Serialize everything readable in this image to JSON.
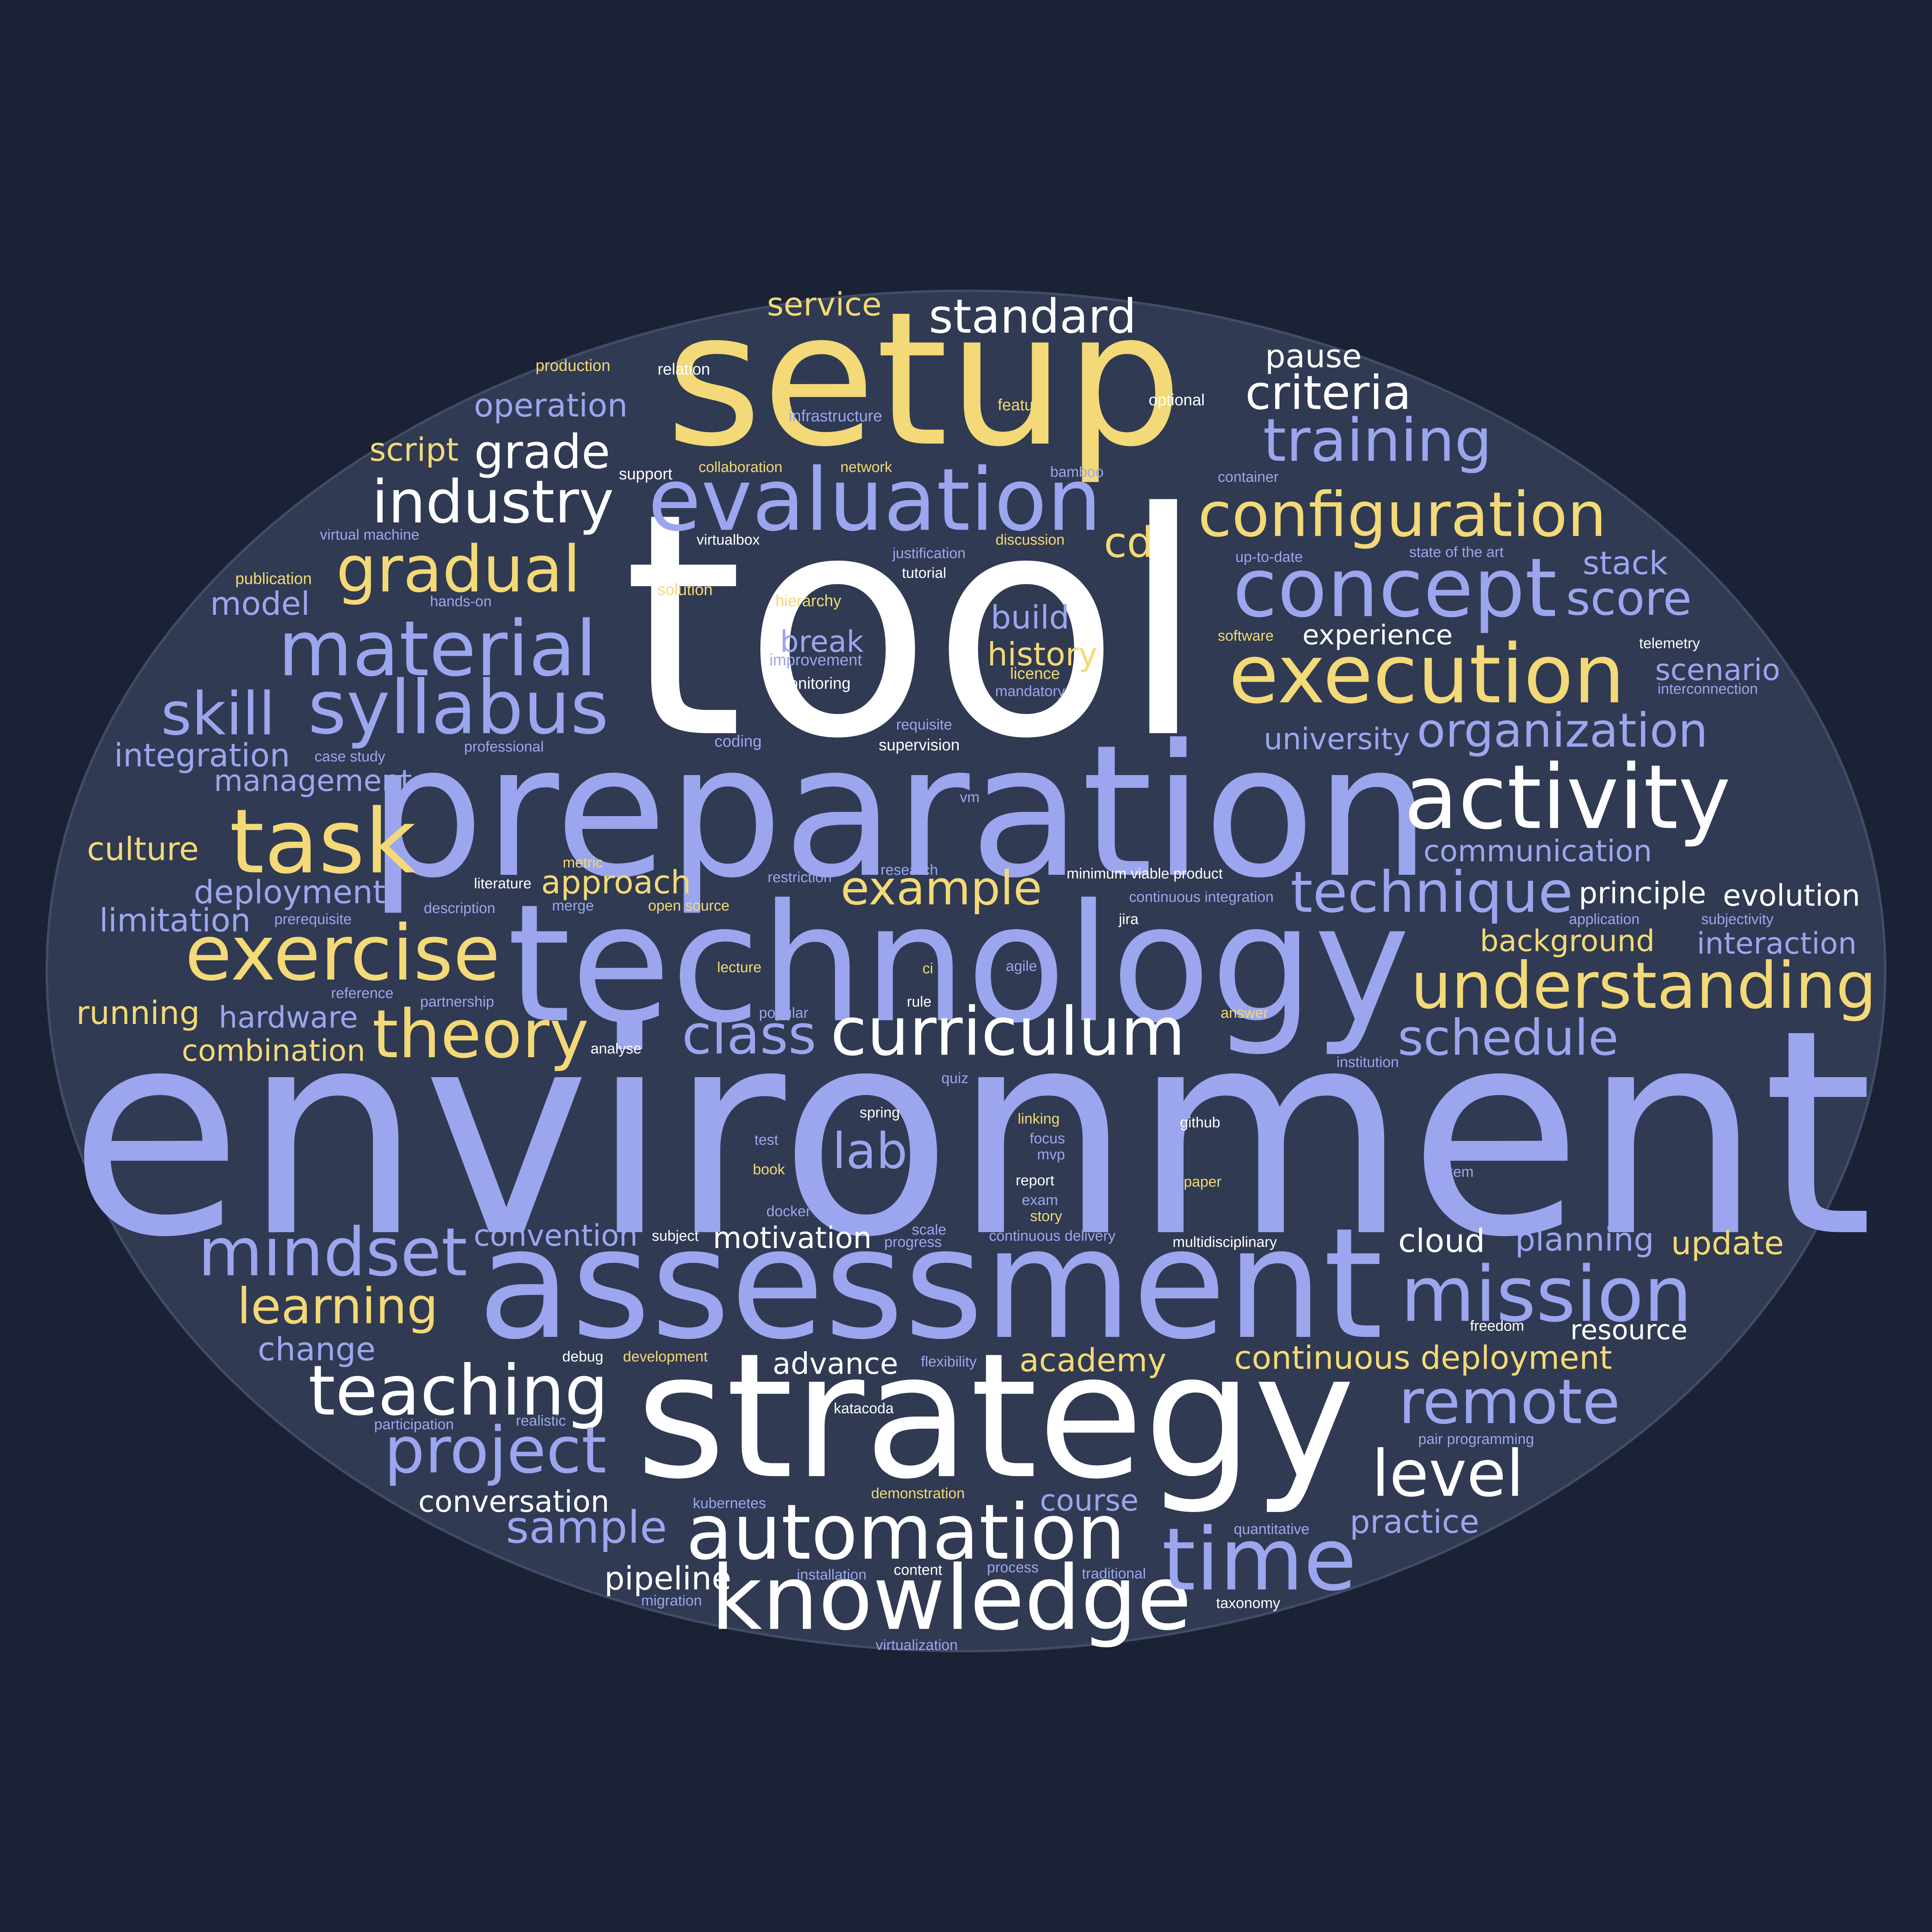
{
  "colors": {
    "background": "#1b2236",
    "oval": "#303a52",
    "oval_border": "#424c66",
    "white": "#ffffff",
    "blue": "#9ca6ee",
    "yellow": "#f3d977"
  },
  "words": [
    {
      "t": "environment",
      "c": "blue"
    },
    {
      "t": "tool",
      "c": "white"
    },
    {
      "t": "setup",
      "c": "yellow"
    },
    {
      "t": "preparation",
      "c": "blue"
    },
    {
      "t": "technology",
      "c": "blue"
    },
    {
      "t": "assessment",
      "c": "blue"
    },
    {
      "t": "strategy",
      "c": "white"
    },
    {
      "t": "knowledge",
      "c": "white"
    },
    {
      "t": "automation",
      "c": "white"
    },
    {
      "t": "activity",
      "c": "white"
    },
    {
      "t": "evaluation",
      "c": "blue"
    },
    {
      "t": "execution",
      "c": "yellow"
    },
    {
      "t": "concept",
      "c": "blue"
    },
    {
      "t": "configuration",
      "c": "yellow"
    },
    {
      "t": "curriculum",
      "c": "white"
    },
    {
      "t": "material",
      "c": "blue"
    },
    {
      "t": "syllabus",
      "c": "blue"
    },
    {
      "t": "task",
      "c": "yellow"
    },
    {
      "t": "exercise",
      "c": "yellow"
    },
    {
      "t": "understanding",
      "c": "yellow"
    },
    {
      "t": "mission",
      "c": "blue"
    },
    {
      "t": "time",
      "c": "blue"
    },
    {
      "t": "remote",
      "c": "blue"
    },
    {
      "t": "teaching",
      "c": "white"
    },
    {
      "t": "project",
      "c": "blue"
    },
    {
      "t": "level",
      "c": "white"
    },
    {
      "t": "theory",
      "c": "yellow"
    },
    {
      "t": "technique",
      "c": "blue"
    },
    {
      "t": "standard",
      "c": "white"
    },
    {
      "t": "industry",
      "c": "white"
    },
    {
      "t": "training",
      "c": "blue"
    },
    {
      "t": "criteria",
      "c": "white"
    },
    {
      "t": "gradual",
      "c": "yellow"
    },
    {
      "t": "skill",
      "c": "blue"
    },
    {
      "t": "mindset",
      "c": "blue"
    },
    {
      "t": "schedule",
      "c": "blue"
    },
    {
      "t": "class",
      "c": "blue"
    },
    {
      "t": "organization",
      "c": "blue"
    },
    {
      "t": "learning",
      "c": "yellow"
    },
    {
      "t": "example",
      "c": "yellow"
    },
    {
      "t": "grade",
      "c": "white"
    },
    {
      "t": "score",
      "c": "blue"
    },
    {
      "t": "sample",
      "c": "blue"
    },
    {
      "t": "cd",
      "c": "yellow"
    },
    {
      "t": "lab",
      "c": "blue"
    },
    {
      "t": "history",
      "c": "yellow"
    },
    {
      "t": "build",
      "c": "blue"
    },
    {
      "t": "break",
      "c": "blue"
    },
    {
      "t": "pipeline",
      "c": "white"
    },
    {
      "t": "cloud",
      "c": "white"
    },
    {
      "t": "stack",
      "c": "blue"
    },
    {
      "t": "scenario",
      "c": "blue"
    },
    {
      "t": "service",
      "c": "yellow"
    },
    {
      "t": "pause",
      "c": "white"
    },
    {
      "t": "operation",
      "c": "blue"
    },
    {
      "t": "script",
      "c": "yellow"
    },
    {
      "t": "model",
      "c": "blue"
    },
    {
      "t": "integration",
      "c": "blue"
    },
    {
      "t": "management",
      "c": "blue"
    },
    {
      "t": "culture",
      "c": "yellow"
    },
    {
      "t": "deployment",
      "c": "blue"
    },
    {
      "t": "limitation",
      "c": "blue"
    },
    {
      "t": "running",
      "c": "yellow"
    },
    {
      "t": "hardware",
      "c": "blue"
    },
    {
      "t": "combination",
      "c": "yellow"
    },
    {
      "t": "approach",
      "c": "yellow"
    },
    {
      "t": "convention",
      "c": "blue"
    },
    {
      "t": "motivation",
      "c": "white"
    },
    {
      "t": "change",
      "c": "blue"
    },
    {
      "t": "advance",
      "c": "white"
    },
    {
      "t": "academy",
      "c": "yellow"
    },
    {
      "t": "continuous deployment",
      "c": "yellow"
    },
    {
      "t": "resource",
      "c": "white"
    },
    {
      "t": "conversation",
      "c": "white"
    },
    {
      "t": "course",
      "c": "blue"
    },
    {
      "t": "practice",
      "c": "blue"
    },
    {
      "t": "planning",
      "c": "blue"
    },
    {
      "t": "update",
      "c": "yellow"
    },
    {
      "t": "university",
      "c": "blue"
    },
    {
      "t": "communication",
      "c": "blue"
    },
    {
      "t": "principle",
      "c": "white"
    },
    {
      "t": "evolution",
      "c": "white"
    },
    {
      "t": "background",
      "c": "yellow"
    },
    {
      "t": "interaction",
      "c": "blue"
    },
    {
      "t": "experience",
      "c": "white"
    },
    {
      "t": "production",
      "c": "yellow",
      "sans": true
    },
    {
      "t": "relation",
      "c": "white",
      "sans": true
    },
    {
      "t": "infrastructure",
      "c": "blue",
      "sans": true
    },
    {
      "t": "feature",
      "c": "yellow",
      "sans": true
    },
    {
      "t": "optional",
      "c": "white",
      "sans": true
    },
    {
      "t": "support",
      "c": "white",
      "sans": true
    },
    {
      "t": "collaboration",
      "c": "yellow",
      "sans": true
    },
    {
      "t": "network",
      "c": "yellow",
      "sans": true
    },
    {
      "t": "bamboo",
      "c": "blue",
      "sans": true
    },
    {
      "t": "container",
      "c": "blue",
      "sans": true
    },
    {
      "t": "virtual machine",
      "c": "blue",
      "sans": true
    },
    {
      "t": "virtualbox",
      "c": "white",
      "sans": true
    },
    {
      "t": "justification",
      "c": "blue",
      "sans": true
    },
    {
      "t": "discussion",
      "c": "yellow",
      "sans": true
    },
    {
      "t": "up-to-date",
      "c": "blue",
      "sans": true
    },
    {
      "t": "state of the art",
      "c": "blue",
      "sans": true
    },
    {
      "t": "publication",
      "c": "yellow",
      "sans": true
    },
    {
      "t": "tutorial",
      "c": "white",
      "sans": true
    },
    {
      "t": "hands-on",
      "c": "blue",
      "sans": true
    },
    {
      "t": "solution",
      "c": "yellow",
      "sans": true
    },
    {
      "t": "hierarchy",
      "c": "yellow",
      "sans": true
    },
    {
      "t": "software",
      "c": "yellow",
      "sans": true
    },
    {
      "t": "telemetry",
      "c": "white",
      "sans": true
    },
    {
      "t": "improvement",
      "c": "blue",
      "sans": true
    },
    {
      "t": "licence",
      "c": "yellow",
      "sans": true
    },
    {
      "t": "mandatory",
      "c": "blue",
      "sans": true
    },
    {
      "t": "monitoring",
      "c": "white",
      "sans": true
    },
    {
      "t": "interconnection",
      "c": "blue",
      "sans": true
    },
    {
      "t": "requisite",
      "c": "blue",
      "sans": true
    },
    {
      "t": "case study",
      "c": "blue",
      "sans": true
    },
    {
      "t": "coding",
      "c": "blue",
      "sans": true
    },
    {
      "t": "supervision",
      "c": "white",
      "sans": true
    },
    {
      "t": "professional",
      "c": "blue",
      "sans": true
    },
    {
      "t": "vm",
      "c": "blue",
      "sans": true
    },
    {
      "t": "metric",
      "c": "yellow",
      "sans": true
    },
    {
      "t": "research",
      "c": "blue",
      "sans": true
    },
    {
      "t": "literature",
      "c": "white",
      "sans": true
    },
    {
      "t": "restriction",
      "c": "blue",
      "sans": true
    },
    {
      "t": "minimum viable product",
      "c": "white",
      "sans": true
    },
    {
      "t": "continuous integration",
      "c": "blue",
      "sans": true
    },
    {
      "t": "description",
      "c": "blue",
      "sans": true
    },
    {
      "t": "merge",
      "c": "blue",
      "sans": true
    },
    {
      "t": "open source",
      "c": "yellow",
      "sans": true
    },
    {
      "t": "prerequisite",
      "c": "blue",
      "sans": true
    },
    {
      "t": "jira",
      "c": "white",
      "sans": true
    },
    {
      "t": "application",
      "c": "blue",
      "sans": true
    },
    {
      "t": "subjectivity",
      "c": "blue",
      "sans": true
    },
    {
      "t": "lecture",
      "c": "yellow",
      "sans": true
    },
    {
      "t": "ci",
      "c": "yellow",
      "sans": true
    },
    {
      "t": "agile",
      "c": "blue",
      "sans": true
    },
    {
      "t": "reference",
      "c": "blue",
      "sans": true
    },
    {
      "t": "partnership",
      "c": "blue",
      "sans": true
    },
    {
      "t": "rule",
      "c": "white",
      "sans": true
    },
    {
      "t": "popular",
      "c": "blue",
      "sans": true
    },
    {
      "t": "answer",
      "c": "yellow",
      "sans": true
    },
    {
      "t": "analyse",
      "c": "white",
      "sans": true
    },
    {
      "t": "institution",
      "c": "blue",
      "sans": true
    },
    {
      "t": "quiz",
      "c": "blue",
      "sans": true
    },
    {
      "t": "spring",
      "c": "white",
      "sans": true
    },
    {
      "t": "linking",
      "c": "yellow",
      "sans": true
    },
    {
      "t": "focus",
      "c": "blue",
      "sans": true
    },
    {
      "t": "mvp",
      "c": "blue",
      "sans": true
    },
    {
      "t": "github",
      "c": "white",
      "sans": true
    },
    {
      "t": "test",
      "c": "blue",
      "sans": true
    },
    {
      "t": "book",
      "c": "yellow",
      "sans": true
    },
    {
      "t": "system",
      "c": "blue",
      "sans": true
    },
    {
      "t": "report",
      "c": "white",
      "sans": true
    },
    {
      "t": "paper",
      "c": "yellow",
      "sans": true
    },
    {
      "t": "exam",
      "c": "blue",
      "sans": true
    },
    {
      "t": "story",
      "c": "yellow",
      "sans": true
    },
    {
      "t": "docker",
      "c": "blue",
      "sans": true
    },
    {
      "t": "scale",
      "c": "blue",
      "sans": true
    },
    {
      "t": "subject",
      "c": "white",
      "sans": true
    },
    {
      "t": "progress",
      "c": "blue",
      "sans": true
    },
    {
      "t": "continuous delivery",
      "c": "blue",
      "sans": true
    },
    {
      "t": "multidisciplinary",
      "c": "white",
      "sans": true
    },
    {
      "t": "freedom",
      "c": "white",
      "sans": true
    },
    {
      "t": "debug",
      "c": "white",
      "sans": true
    },
    {
      "t": "development",
      "c": "yellow",
      "sans": true
    },
    {
      "t": "flexibility",
      "c": "blue",
      "sans": true
    },
    {
      "t": "participation",
      "c": "blue",
      "sans": true
    },
    {
      "t": "realistic",
      "c": "blue",
      "sans": true
    },
    {
      "t": "katacoda",
      "c": "white",
      "sans": true
    },
    {
      "t": "pair programming",
      "c": "blue",
      "sans": true
    },
    {
      "t": "kubernetes",
      "c": "blue",
      "sans": true
    },
    {
      "t": "demonstration",
      "c": "yellow",
      "sans": true
    },
    {
      "t": "quantitative",
      "c": "blue",
      "sans": true
    },
    {
      "t": "installation",
      "c": "blue",
      "sans": true
    },
    {
      "t": "content",
      "c": "white",
      "sans": true
    },
    {
      "t": "process",
      "c": "blue",
      "sans": true
    },
    {
      "t": "traditional",
      "c": "blue",
      "sans": true
    },
    {
      "t": "migration",
      "c": "blue",
      "sans": true
    },
    {
      "t": "taxonomy",
      "c": "white",
      "sans": true
    },
    {
      "t": "virtualization",
      "c": "blue",
      "sans": true
    }
  ]
}
